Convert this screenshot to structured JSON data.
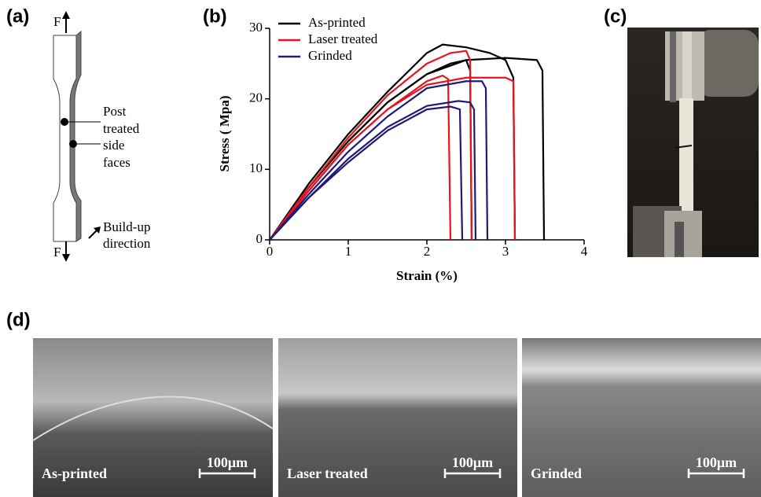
{
  "panel_labels": [
    "(a)",
    "(b)",
    "(c)",
    "(d)"
  ],
  "panel_a": {
    "force_top": "F",
    "force_bottom": "F",
    "annotation": [
      "Post",
      "treated",
      "side",
      "faces"
    ],
    "direction": [
      "Build-up",
      "direction"
    ]
  },
  "chart_data": {
    "type": "line",
    "xlabel": "Strain (%)",
    "ylabel": "Stress ( Mpa)",
    "xlim": [
      0,
      4
    ],
    "xticks": [
      0,
      1,
      2,
      3,
      4
    ],
    "ylim": [
      0,
      30
    ],
    "yticks": [
      0,
      10,
      20,
      30
    ],
    "legend": "upper left",
    "series": [
      {
        "name": "As-printed",
        "color": "#000000",
        "specimens": [
          {
            "x": [
              0,
              0.5,
              1,
              1.5,
              2,
              2.2,
              2.5,
              2.8,
              3.0,
              3.1,
              3.12
            ],
            "values": [
              0,
              8,
              15,
              21,
              26.5,
              27.7,
              27.3,
              26.5,
              25.5,
              23,
              0
            ]
          },
          {
            "x": [
              0,
              0.5,
              1,
              1.5,
              2,
              2.5,
              3.0,
              3.4,
              3.47,
              3.49
            ],
            "values": [
              0,
              7.5,
              14,
              19.5,
              23.5,
              25.5,
              25.8,
              25.5,
              24,
              0
            ]
          },
          {
            "x": [
              0,
              0.5,
              1,
              1.5,
              2,
              2.3,
              2.5,
              2.55,
              2.57
            ],
            "values": [
              0,
              7.5,
              14,
              19.5,
              23.5,
              25,
              25.5,
              24,
              0
            ]
          }
        ]
      },
      {
        "name": "Laser treated",
        "color": "#e8141b",
        "specimens": [
          {
            "x": [
              0,
              0.5,
              1,
              1.5,
              2,
              2.3,
              2.5,
              2.55,
              2.57
            ],
            "values": [
              0,
              7.5,
              14.5,
              20.5,
              25,
              26.5,
              26.8,
              25.5,
              0
            ]
          },
          {
            "x": [
              0,
              0.5,
              1,
              1.5,
              2,
              2.5,
              3.0,
              3.1,
              3.12
            ],
            "values": [
              0,
              7,
              13.5,
              18.5,
              22,
              23,
              23,
              22.5,
              0
            ]
          },
          {
            "x": [
              0,
              0.5,
              1,
              1.5,
              2,
              2.2,
              2.27,
              2.3
            ],
            "values": [
              0,
              7,
              13.5,
              18.5,
              22.5,
              23.3,
              22.8,
              0
            ]
          }
        ]
      },
      {
        "name": "Grinded",
        "color": "#1f1a7a",
        "specimens": [
          {
            "x": [
              0,
              0.5,
              1,
              1.5,
              2,
              2.5,
              2.7,
              2.75,
              2.77
            ],
            "values": [
              0,
              6.5,
              12.5,
              17.5,
              21.5,
              22.5,
              22.5,
              21.5,
              0
            ]
          },
          {
            "x": [
              0,
              0.5,
              1,
              1.5,
              2,
              2.4,
              2.55,
              2.6,
              2.62
            ],
            "values": [
              0,
              6,
              11.5,
              16,
              19,
              19.7,
              19.5,
              18.5,
              0
            ]
          },
          {
            "x": [
              0,
              0.5,
              1,
              1.5,
              2,
              2.3,
              2.42,
              2.45
            ],
            "values": [
              0,
              6,
              11,
              15.5,
              18.5,
              18.9,
              18.5,
              0
            ]
          }
        ]
      }
    ]
  },
  "panel_d": [
    {
      "caption": "As-printed",
      "scale": "100μm"
    },
    {
      "caption": "Laser treated",
      "scale": "100μm"
    },
    {
      "caption": "Grinded",
      "scale": "100μm"
    }
  ]
}
